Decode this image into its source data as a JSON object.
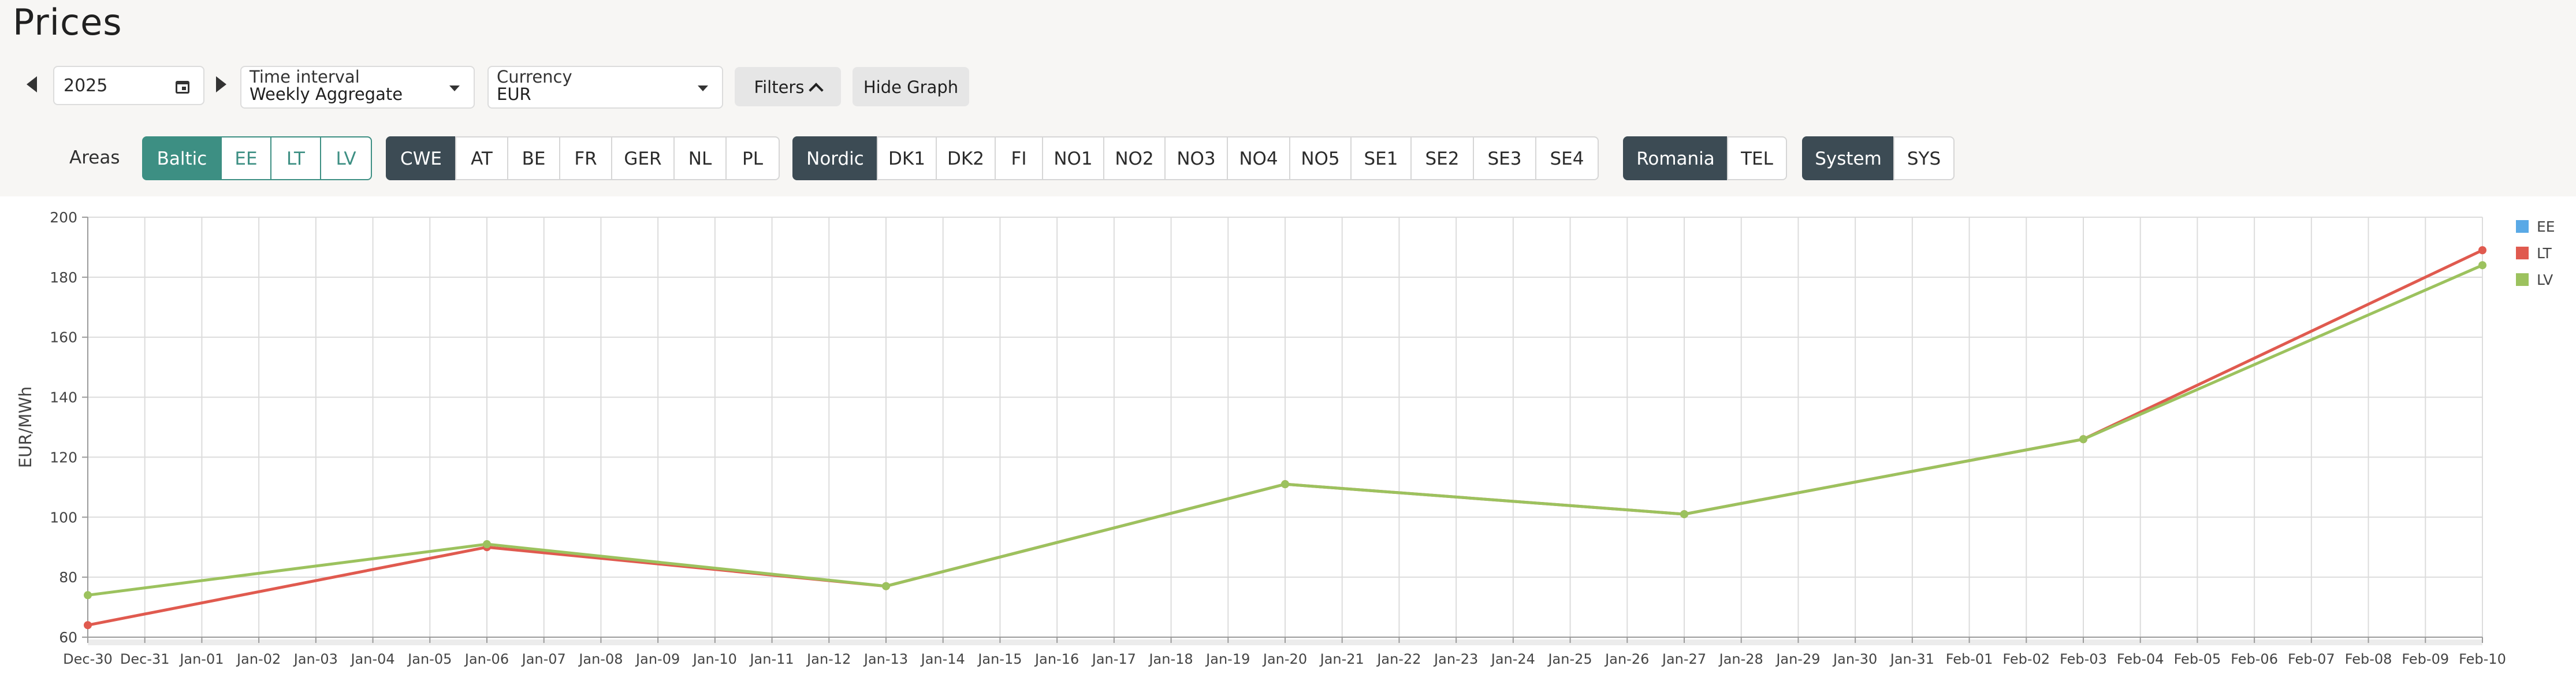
{
  "page": {
    "title": "Prices"
  },
  "controls": {
    "year": "2025",
    "time_interval": {
      "label": "Time interval",
      "value": "Weekly Aggregate"
    },
    "currency": {
      "label": "Currency",
      "value": "EUR"
    },
    "filters_label": "Filters",
    "hide_graph_label": "Hide Graph"
  },
  "areas": {
    "label": "Areas",
    "groups": [
      {
        "name": "baltic",
        "items": [
          "Baltic",
          "EE",
          "LT",
          "LV"
        ]
      },
      {
        "name": "cwe",
        "items": [
          "CWE",
          "AT",
          "BE",
          "FR",
          "GER",
          "NL",
          "PL"
        ]
      },
      {
        "name": "nordic",
        "items": [
          "Nordic",
          "DK1",
          "DK2",
          "FI",
          "NO1",
          "NO2",
          "NO3",
          "NO4",
          "NO5",
          "SE1",
          "SE2",
          "SE3",
          "SE4"
        ]
      },
      {
        "name": "romania",
        "items": [
          "Romania",
          "TEL"
        ]
      },
      {
        "name": "system",
        "items": [
          "System",
          "SYS"
        ]
      }
    ]
  },
  "colors": {
    "baltic_accent": "#3d8f83",
    "group_active": "#3c4b54"
  },
  "chart_data": {
    "type": "line",
    "ylabel": "EUR/MWh",
    "ylim": [
      60,
      200
    ],
    "yticks": [
      60,
      80,
      100,
      120,
      140,
      160,
      180,
      200
    ],
    "grid": true,
    "legend_position": "top-right",
    "x": [
      "Dec-30",
      "Dec-31",
      "Jan-01",
      "Jan-02",
      "Jan-03",
      "Jan-04",
      "Jan-05",
      "Jan-06",
      "Jan-07",
      "Jan-08",
      "Jan-09",
      "Jan-10",
      "Jan-11",
      "Jan-12",
      "Jan-13",
      "Jan-14",
      "Jan-15",
      "Jan-16",
      "Jan-17",
      "Jan-18",
      "Jan-19",
      "Jan-20",
      "Jan-21",
      "Jan-22",
      "Jan-23",
      "Jan-24",
      "Jan-25",
      "Jan-26",
      "Jan-27",
      "Jan-28",
      "Jan-29",
      "Jan-30",
      "Jan-31",
      "Feb-01",
      "Feb-02",
      "Feb-03",
      "Feb-04",
      "Feb-05",
      "Feb-06",
      "Feb-07",
      "Feb-08",
      "Feb-09",
      "Feb-10"
    ],
    "series": [
      {
        "name": "EE",
        "color": "#5aa9e6",
        "points": []
      },
      {
        "name": "LT",
        "color": "#e05a4f",
        "points": [
          {
            "x": "Dec-30",
            "y": 64
          },
          {
            "x": "Jan-06",
            "y": 90
          },
          {
            "x": "Jan-13",
            "y": 77
          },
          {
            "x": "Jan-20",
            "y": 111
          },
          {
            "x": "Jan-27",
            "y": 101
          },
          {
            "x": "Feb-03",
            "y": 126
          },
          {
            "x": "Feb-10",
            "y": 189
          }
        ]
      },
      {
        "name": "LV",
        "color": "#9cc25e",
        "points": [
          {
            "x": "Dec-30",
            "y": 74
          },
          {
            "x": "Jan-06",
            "y": 91
          },
          {
            "x": "Jan-13",
            "y": 77
          },
          {
            "x": "Jan-20",
            "y": 111
          },
          {
            "x": "Jan-27",
            "y": 101
          },
          {
            "x": "Feb-03",
            "y": 126
          },
          {
            "x": "Feb-10",
            "y": 184
          }
        ]
      }
    ]
  }
}
